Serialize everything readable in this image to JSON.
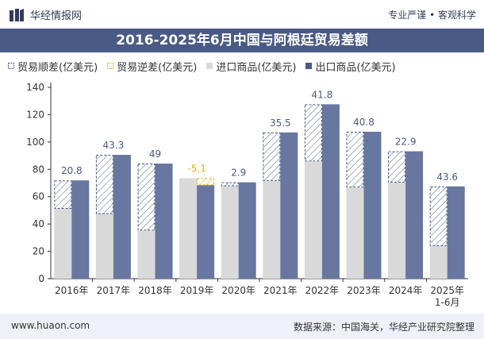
{
  "header": {
    "brand": "华经情报网",
    "slogan": "专业严谨 • 客观科学"
  },
  "title": "2016-2025年6月中国与阿根廷贸易差额",
  "legend": [
    {
      "label": "贸易顺差(亿美元)",
      "key": "surplus",
      "color": "#4a5a86"
    },
    {
      "label": "贸易逆差(亿美元)",
      "key": "deficit",
      "color": "#e8b400"
    },
    {
      "label": "进口商品(亿美元)",
      "key": "imports",
      "color": "#d9d9d9"
    },
    {
      "label": "出口商品(亿美元)",
      "key": "exports",
      "color": "#4a5a86"
    }
  ],
  "footer": {
    "url": "www.huaon.com",
    "source": "数据来源：中国海关，华经产业研究院整理"
  },
  "colors": {
    "exports": "#68779f",
    "imports": "#d9d9d9",
    "surplus_stroke": "#4a5a86",
    "deficit_stroke": "#e8b400",
    "axis": "#333333",
    "grid": "#f0f0f0"
  },
  "chart_data": {
    "type": "bar",
    "title": "2016-2025年6月中国与阿根廷贸易差额",
    "categories": [
      "2016年",
      "2017年",
      "2018年",
      "2019年",
      "2020年",
      "2021年",
      "2022年",
      "2023年",
      "2024年",
      "2025年\n1-6月"
    ],
    "ylim": [
      0,
      140
    ],
    "yticks": [
      0,
      20,
      40,
      60,
      80,
      100,
      120,
      140
    ],
    "series": [
      {
        "name": "进口商品(亿美元)",
        "values": [
          51.1,
          47.3,
          35.2,
          73.5,
          67.6,
          71.5,
          85.8,
          66.7,
          70.3,
          23.9
        ]
      },
      {
        "name": "出口商品(亿美元)",
        "values": [
          71.9,
          90.6,
          84.2,
          68.4,
          70.5,
          107.0,
          127.6,
          107.5,
          93.2,
          67.5
        ]
      },
      {
        "name": "贸易顺差(亿美元)",
        "values": [
          20.8,
          43.3,
          49,
          null,
          2.9,
          35.5,
          41.8,
          40.8,
          22.9,
          43.6
        ]
      },
      {
        "name": "贸易逆差(亿美元)",
        "values": [
          null,
          null,
          null,
          -5.1,
          null,
          null,
          null,
          null,
          null,
          null
        ]
      }
    ],
    "data_labels": [
      "20.8",
      "43.3",
      "49",
      "-5.1",
      "2.9",
      "35.5",
      "41.8",
      "40.8",
      "22.9",
      "43.6"
    ],
    "grid": false,
    "legend_position": "top"
  }
}
